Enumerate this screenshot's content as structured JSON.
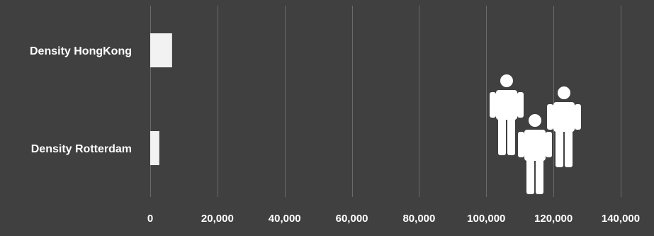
{
  "chart_data": {
    "type": "bar",
    "orientation": "horizontal",
    "categories": [
      "Density HongKong",
      "Density Rotterdam"
    ],
    "values": [
      6500,
      2700
    ],
    "xlim": [
      0,
      140000
    ],
    "xticks": [
      0,
      20000,
      40000,
      60000,
      80000,
      100000,
      120000,
      140000
    ],
    "xtick_labels": [
      "0",
      "20,000",
      "40,000",
      "60,000",
      "80,000",
      "100,000",
      "120,000",
      "140,000"
    ],
    "grid": true,
    "legend": "none",
    "colors": {
      "background": "#404040",
      "bar": "#f2f2f2",
      "grid": "#6a6a6a",
      "text": "#ffffff"
    }
  },
  "decoration": {
    "icon": "people-group-icon"
  }
}
